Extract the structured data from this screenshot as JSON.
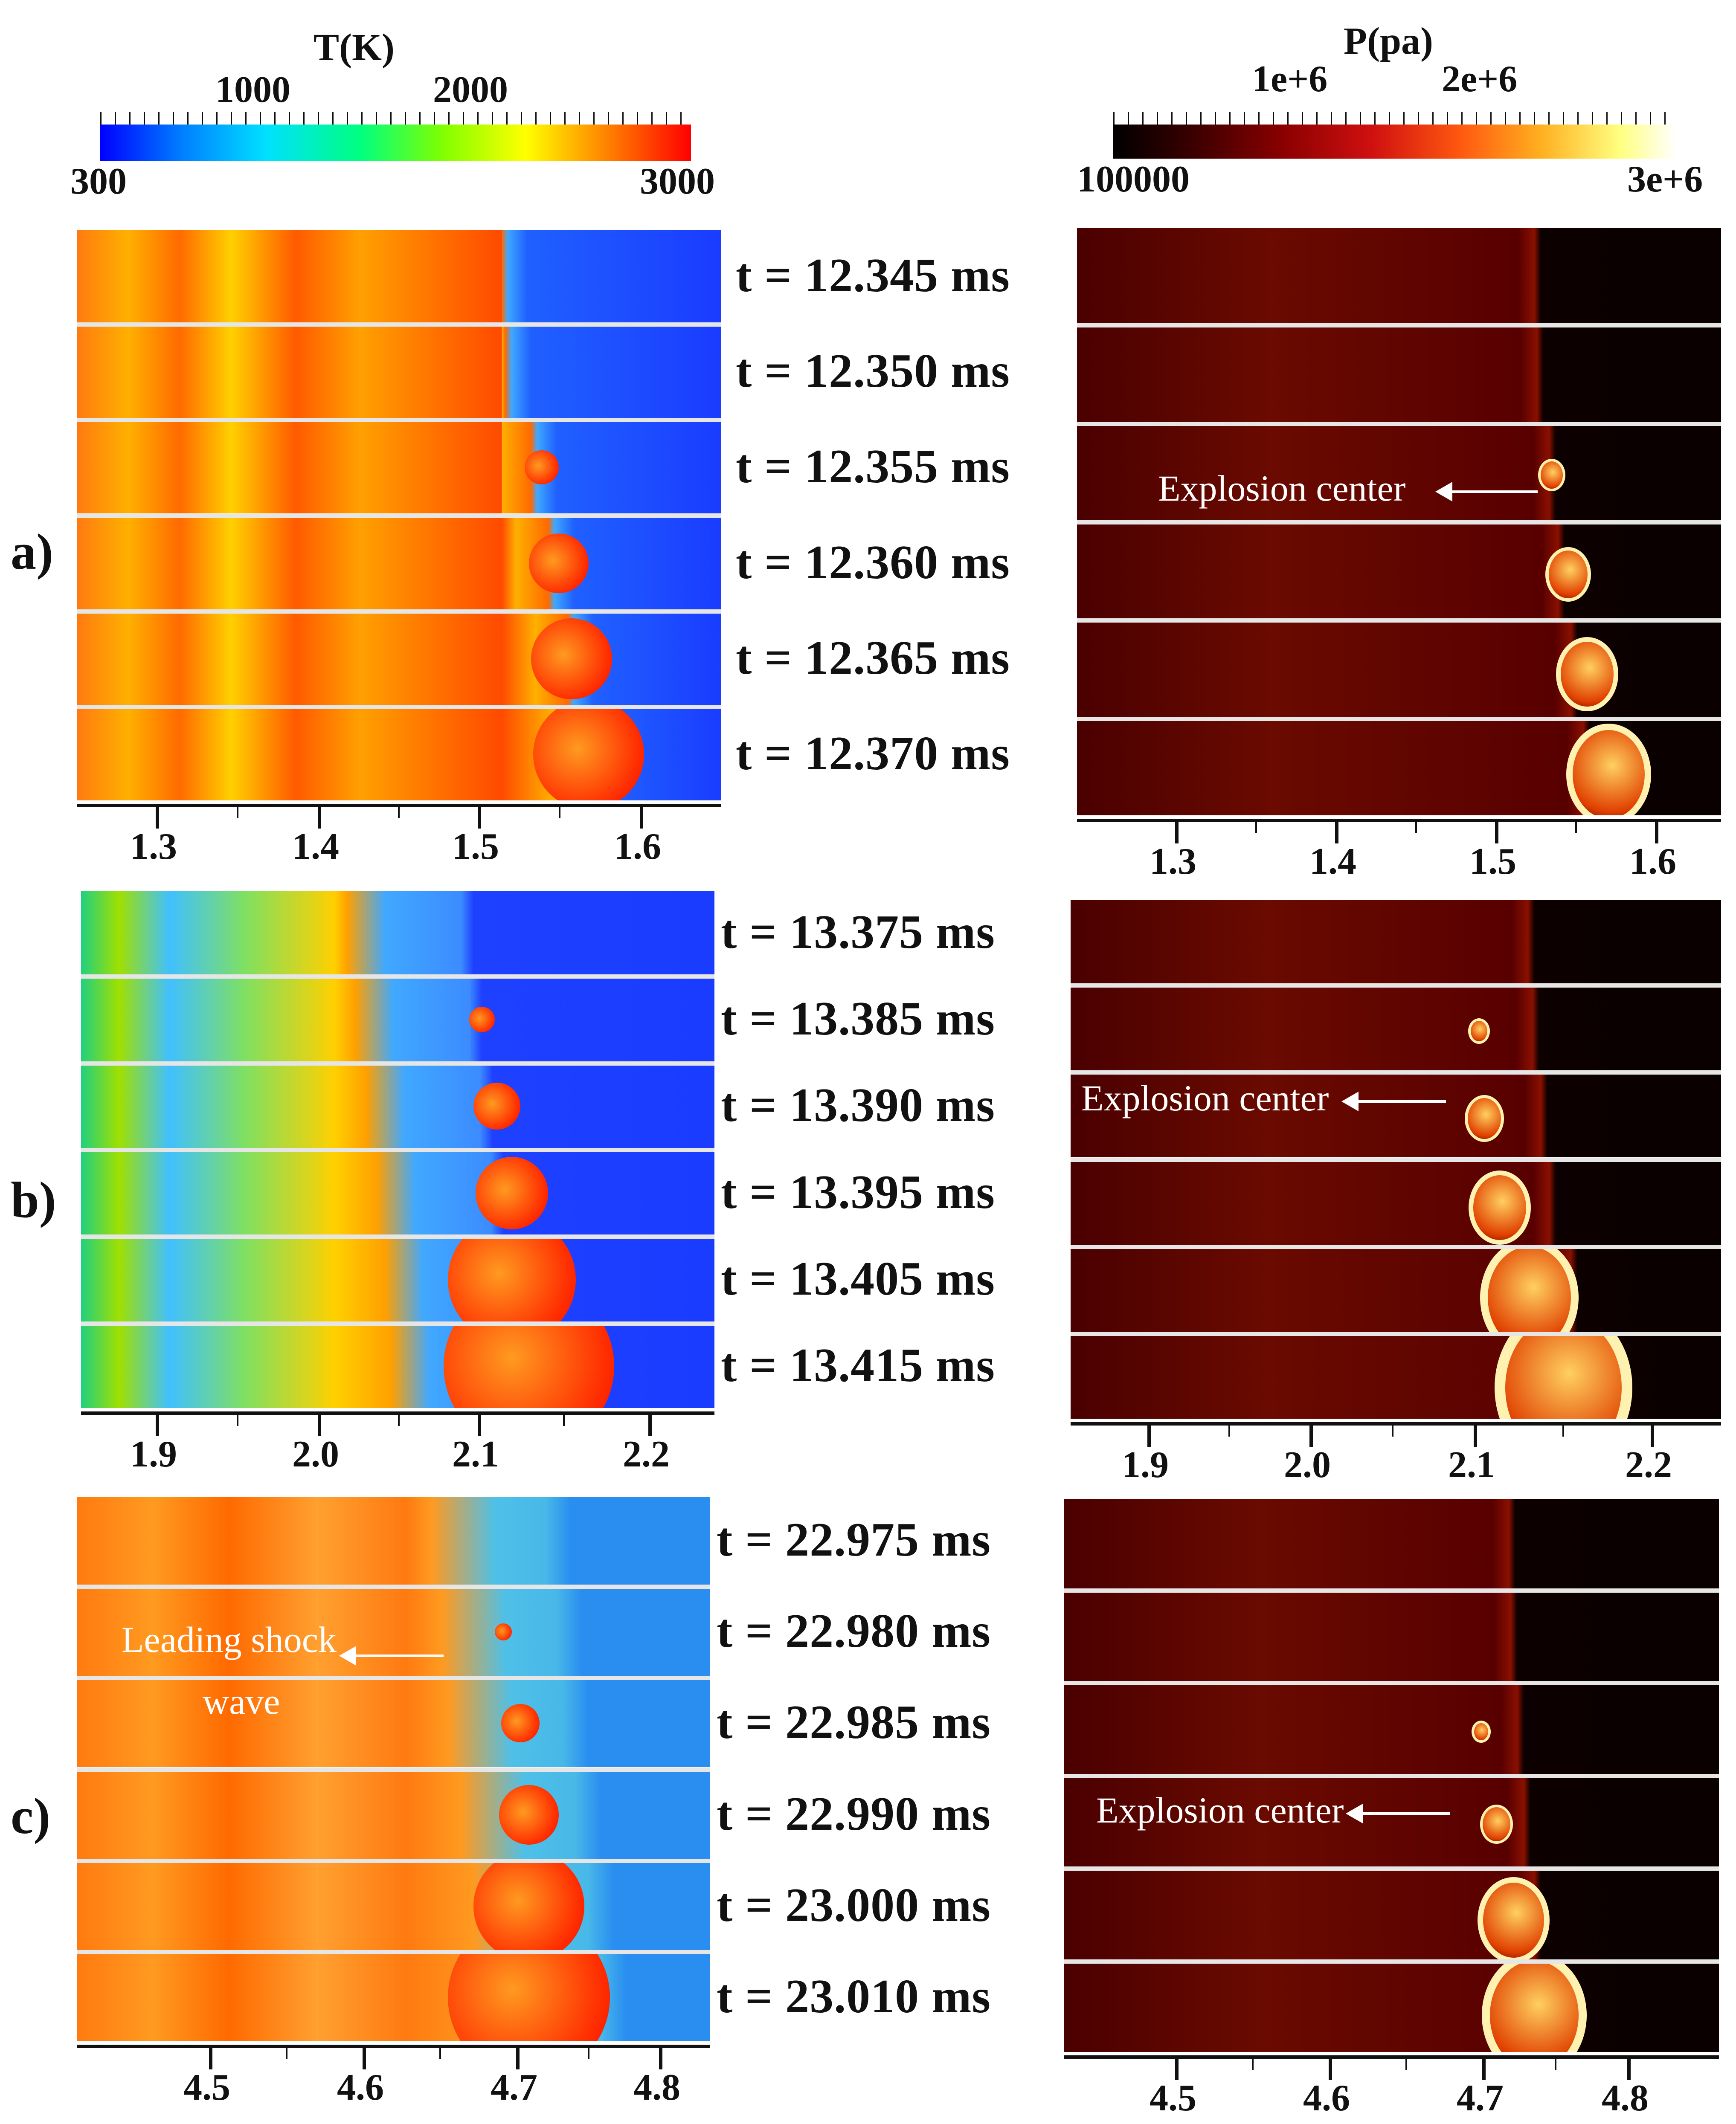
{
  "temperature_scale": {
    "title": "T(K)",
    "major_labels": [
      "1000",
      "2000"
    ],
    "min_label": "300",
    "max_label": "3000",
    "colors": [
      "#0000ff",
      "#0080ff",
      "#00e0ff",
      "#00ff80",
      "#80ff00",
      "#ffff00",
      "#ff8000",
      "#ff0000"
    ]
  },
  "pressure_scale": {
    "title": "P(pa)",
    "major_labels": [
      "1e+6",
      "2e+6"
    ],
    "min_label": "100000",
    "max_label": "3e+6",
    "colors": [
      "#000000",
      "#3a0000",
      "#8a0000",
      "#d01010",
      "#ff5a10",
      "#ffb020",
      "#ffff80",
      "#ffffff"
    ]
  },
  "panels": [
    {
      "label": "a)",
      "times": [
        "t = 12.345 ms",
        "t = 12.350 ms",
        "t = 12.355 ms",
        "t = 12.360 ms",
        "t = 12.365 ms",
        "t = 12.370 ms"
      ],
      "left_ticks": [
        "1.3",
        "1.4",
        "1.5",
        "1.6"
      ],
      "right_ticks": [
        "1.3",
        "1.4",
        "1.5",
        "1.6"
      ],
      "annotation": "Explosion center"
    },
    {
      "label": "b)",
      "times": [
        "t = 13.375 ms",
        "t = 13.385 ms",
        "t = 13.390 ms",
        "t = 13.395 ms",
        "t = 13.405 ms",
        "t = 13.415 ms"
      ],
      "left_ticks": [
        "1.9",
        "2.0",
        "2.1",
        "2.2"
      ],
      "right_ticks": [
        "1.9",
        "2.0",
        "2.1",
        "2.2"
      ],
      "annotation": "Explosion center"
    },
    {
      "label": "c)",
      "times": [
        "t = 22.975 ms",
        "t = 22.980 ms",
        "t = 22.985 ms",
        "t = 22.990 ms",
        "t = 23.000 ms",
        "t = 23.010 ms"
      ],
      "left_ticks": [
        "4.5",
        "4.6",
        "4.7",
        "4.8"
      ],
      "right_ticks": [
        "4.5",
        "4.6",
        "4.7",
        "4.8"
      ],
      "annotation": "Explosion center",
      "left_annotation_line1": "Leading shock",
      "left_annotation_line2": "wave"
    }
  ]
}
